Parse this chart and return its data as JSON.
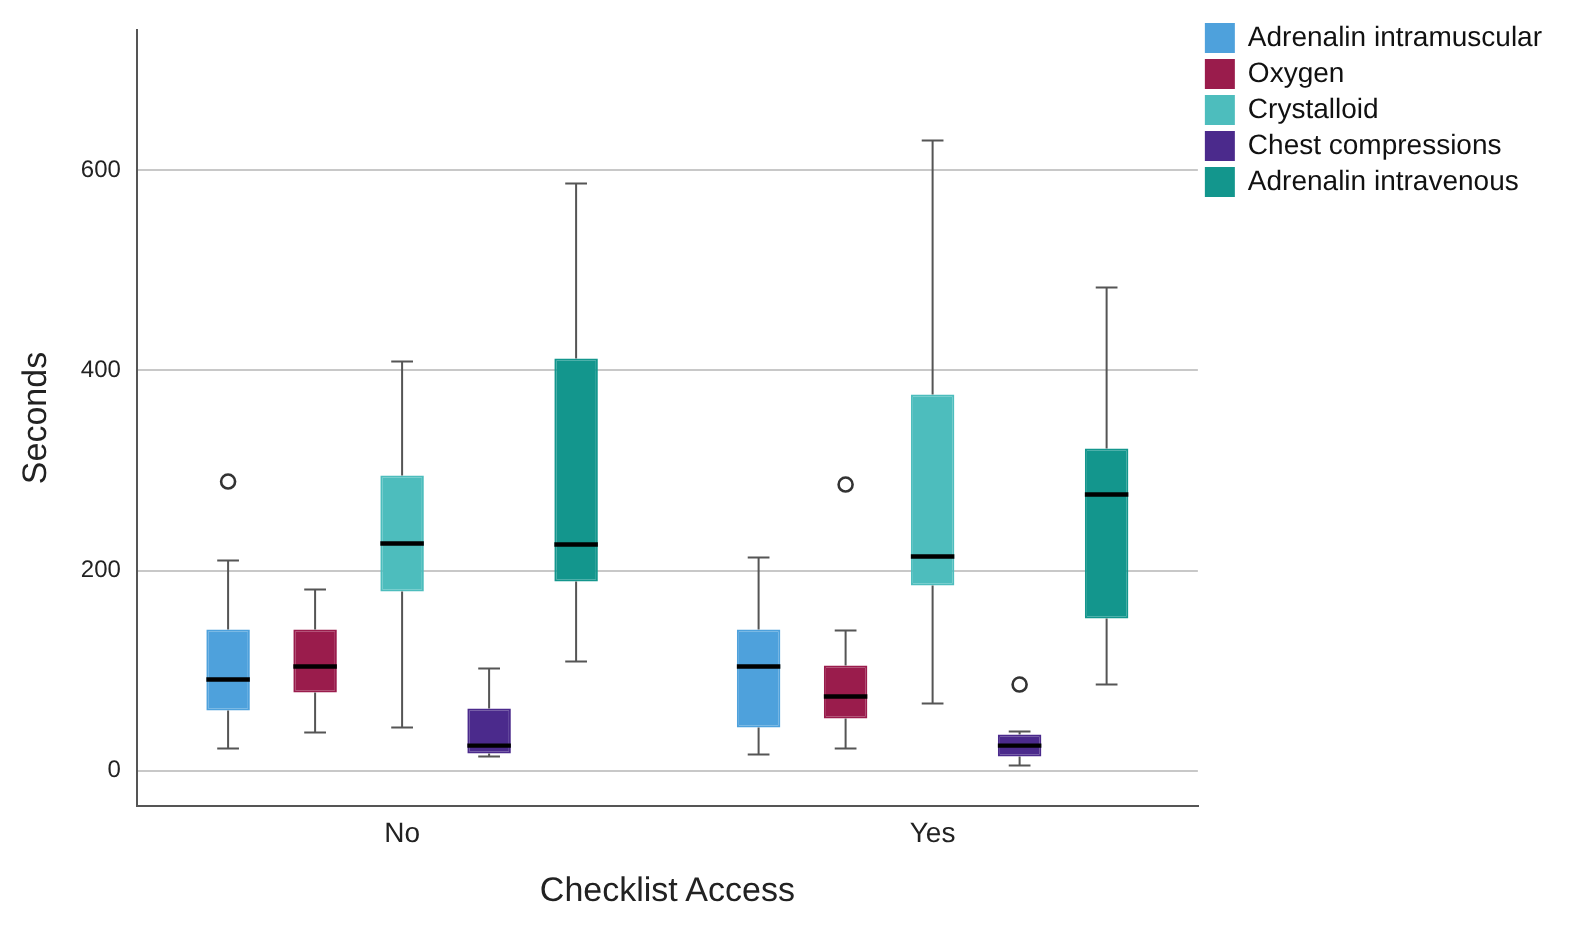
{
  "chart_data": {
    "type": "box",
    "xlabel": "Checklist Access",
    "ylabel": "Seconds",
    "categories": [
      "No",
      "Yes"
    ],
    "ylim": [
      -35,
      740
    ],
    "yticks": [
      0,
      200,
      400,
      600
    ],
    "grid": "y",
    "legend": "top right",
    "series": [
      {
        "name": "Adrenalin intramuscular",
        "color": "#4ea1dc",
        "boxes": [
          {
            "low": 22,
            "q1": 60,
            "median": 91,
            "q3": 141,
            "high": 210,
            "outliers": [
              289
            ]
          },
          {
            "low": 16,
            "q1": 43,
            "median": 104,
            "q3": 141,
            "high": 213
          }
        ]
      },
      {
        "name": "Oxygen",
        "color": "#9a1c4c",
        "boxes": [
          {
            "low": 38,
            "q1": 78,
            "median": 104,
            "q3": 141,
            "high": 181
          },
          {
            "low": 22,
            "q1": 52,
            "median": 74,
            "q3": 105,
            "high": 140,
            "outliers": [
              286
            ]
          }
        ]
      },
      {
        "name": "Crystalloid",
        "color": "#4dbdbd",
        "boxes": [
          {
            "low": 43,
            "q1": 179,
            "median": 227,
            "q3": 295,
            "high": 409
          },
          {
            "low": 67,
            "q1": 185,
            "median": 214,
            "q3": 376,
            "high": 630
          }
        ]
      },
      {
        "name": "Chest compressions",
        "color": "#4b2a8c",
        "boxes": [
          {
            "low": 14,
            "q1": 17,
            "median": 25,
            "q3": 62,
            "high": 102
          },
          {
            "low": 5,
            "q1": 14,
            "median": 25,
            "q3": 36,
            "high": 39,
            "outliers": [
              86
            ]
          }
        ]
      },
      {
        "name": "Adrenalin intravenous",
        "color": "#13968d",
        "boxes": [
          {
            "low": 109,
            "q1": 189,
            "median": 226,
            "q3": 412,
            "high": 587
          },
          {
            "low": 86,
            "q1": 152,
            "median": 276,
            "q3": 322,
            "high": 483
          }
        ]
      }
    ]
  }
}
